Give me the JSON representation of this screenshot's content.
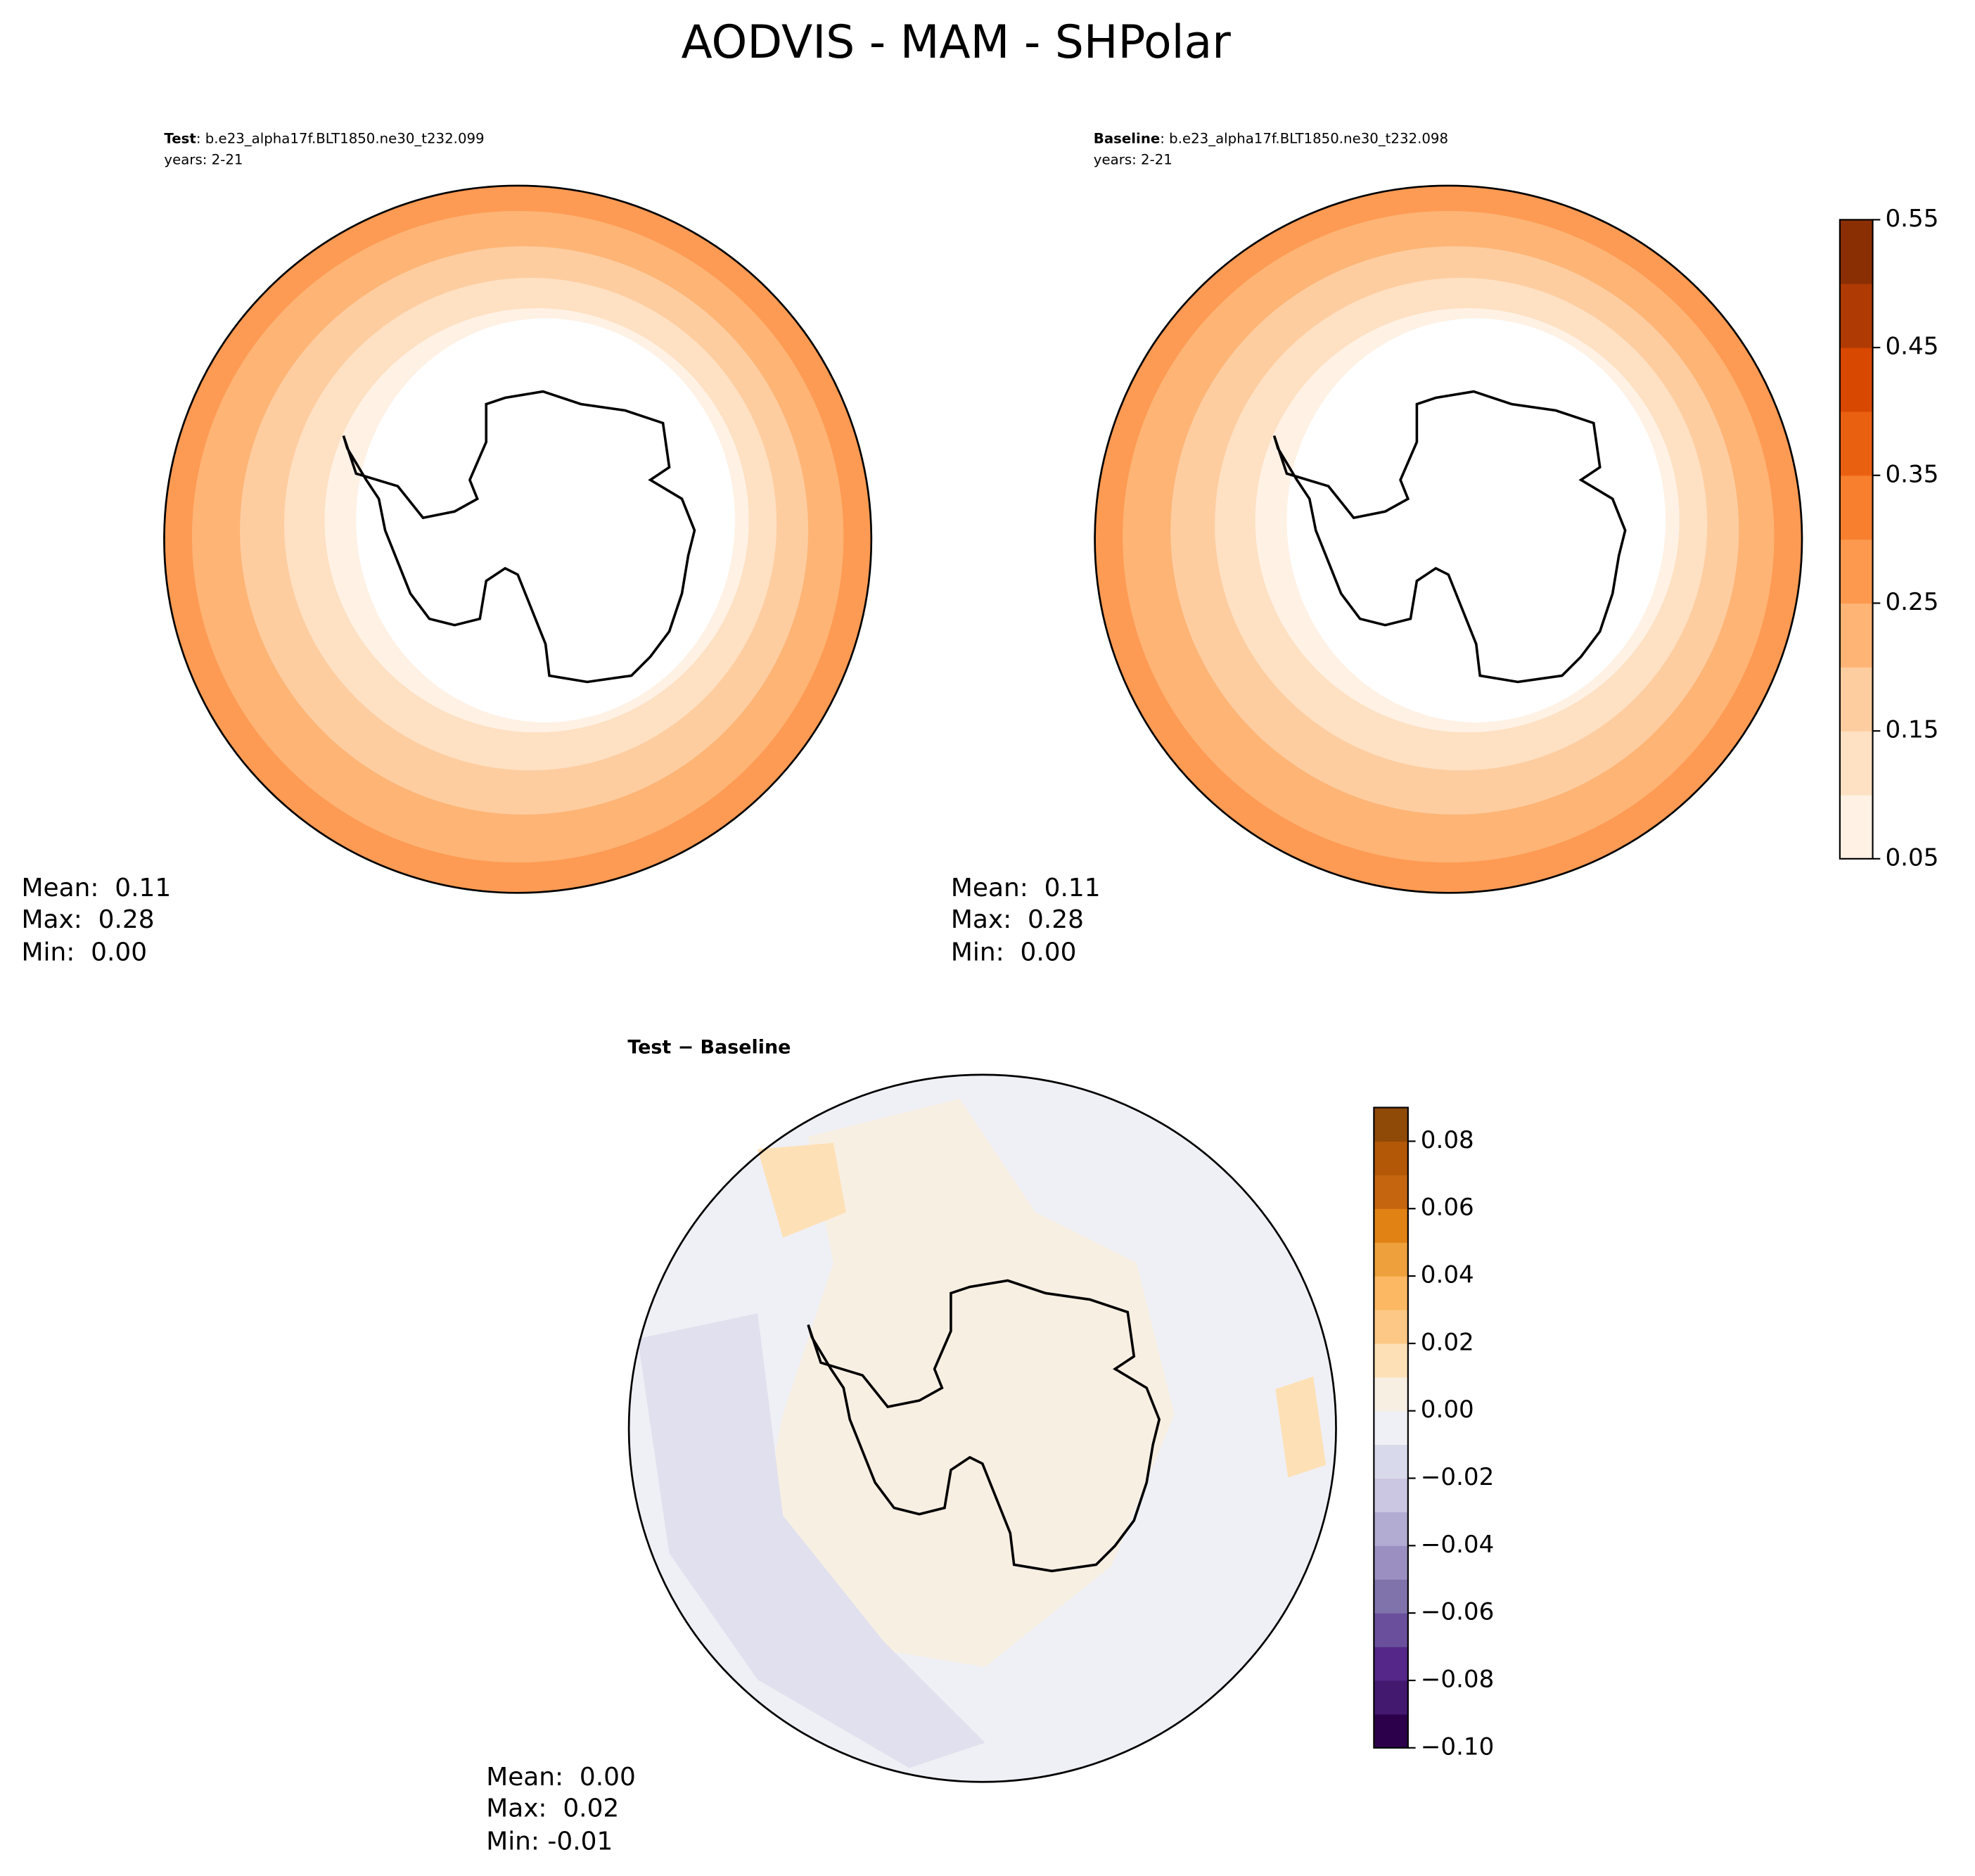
{
  "title": "AODVIS - MAM - SHPolar",
  "panels": [
    {
      "label": "Test",
      "case": ": b.e23_alpha17f.BLT1850.ne30_t232.099",
      "years": "years: 2-21",
      "stats": [
        "Mean:  0.11",
        "Max:  0.28",
        "Min:  0.00"
      ]
    },
    {
      "label": "Baseline",
      "case": ": b.e23_alpha17f.BLT1850.ne30_t232.098",
      "years": "years: 2-21",
      "stats": [
        "Mean:  0.11",
        "Max:  0.28",
        "Min:  0.00"
      ]
    },
    {
      "label": "Test − Baseline",
      "stats": [
        "Mean:  0.00",
        "Max:  0.02",
        "Min: -0.01"
      ]
    }
  ],
  "colorbars": [
    {
      "lim": [
        0.05,
        0.55
      ],
      "ticks": [
        0.05,
        0.15,
        0.25,
        0.35,
        0.45,
        0.55
      ],
      "colors": [
        "#fff1e4",
        "#fee0c2",
        "#fdcda0",
        "#fdb475",
        "#fd994f",
        "#f77f2e",
        "#ea6011",
        "#d84801",
        "#b03a03",
        "#8a2f04"
      ]
    },
    {
      "lim": [
        -0.1,
        0.09
      ],
      "ticks": [
        {
          "value": -0.1,
          "label": "−0.10"
        },
        {
          "value": -0.08,
          "label": "−0.08"
        },
        {
          "value": -0.06,
          "label": "−0.06"
        },
        {
          "value": -0.04,
          "label": "−0.04"
        },
        {
          "value": -0.02,
          "label": "−0.02"
        },
        {
          "value": 0,
          "label": "0.00"
        },
        0.02,
        0.04,
        0.06,
        0.08
      ],
      "colors": [
        "#2d004b",
        "#43186f",
        "#542788",
        "#6a509c",
        "#8073ac",
        "#9a8fc0",
        "#b2abd2",
        "#cbc6e1",
        "#d8daeb",
        "#eff0f5",
        "#f8efe3",
        "#fee0b6",
        "#fdc885",
        "#fdb863",
        "#eda03c",
        "#e08214",
        "#c6650f",
        "#b35806",
        "#8f4a08"
      ]
    }
  ]
}
